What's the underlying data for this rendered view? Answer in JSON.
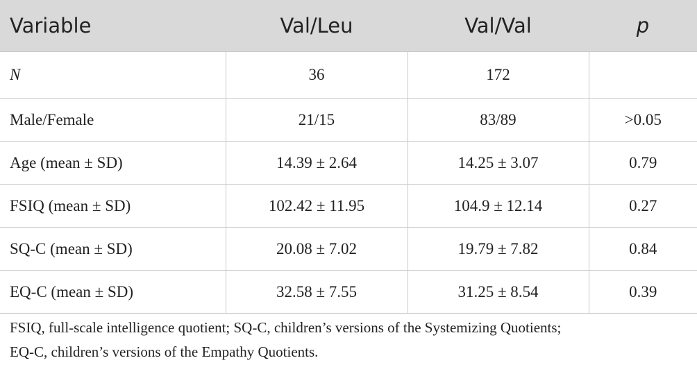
{
  "table": {
    "columns": [
      "Variable",
      "Val/Leu",
      "Val/Val",
      "p"
    ],
    "rows": [
      [
        "N",
        "36",
        "172"
      ],
      [
        "Male/Female",
        "21/15",
        "83/89",
        ">0.05"
      ],
      [
        "Age (mean ± SD)",
        "14.39 ± 2.64",
        "14.25 ± 3.07",
        "0.79"
      ],
      [
        "FSIQ (mean ± SD)",
        "102.42 ± 11.95",
        "104.9 ± 12.14",
        "0.27"
      ],
      [
        "SQ-C (mean ± SD)",
        "20.08 ± 7.02",
        "19.79 ± 7.82",
        "0.84"
      ],
      [
        "EQ-C (mean ± SD)",
        "32.58 ± 7.55",
        "31.25 ± 8.54",
        "0.39"
      ]
    ]
  },
  "footnote": [
    "FSIQ, full-scale intelligence quotient; SQ-C, children’s versions of the Systemizing Quotients;",
    "EQ-C, children’s versions of the Empathy Quotients."
  ]
}
